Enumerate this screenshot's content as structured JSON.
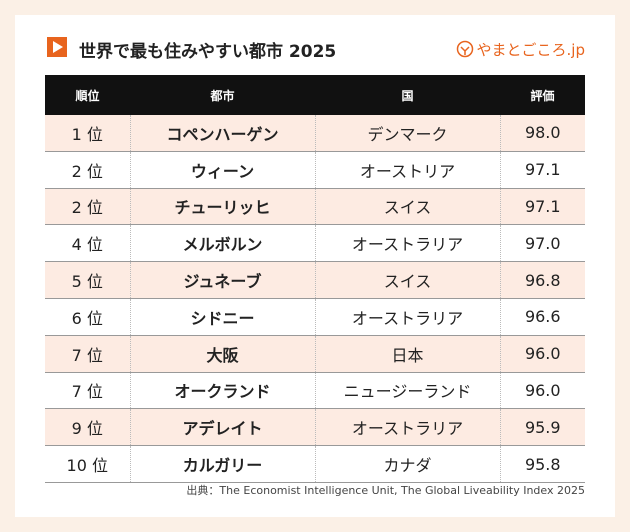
{
  "header": {
    "title": "世界で最も住みやすい都市 2025",
    "brand": "やまとごころ.jp"
  },
  "table": {
    "columns": [
      "順位",
      "都市",
      "国",
      "評価"
    ],
    "rows": [
      [
        "1 位",
        "コペンハーゲン",
        "デンマーク",
        "98.0"
      ],
      [
        "2 位",
        "ウィーン",
        "オーストリア",
        "97.1"
      ],
      [
        "2 位",
        "チューリッヒ",
        "スイス",
        "97.1"
      ],
      [
        "4 位",
        "メルボルン",
        "オーストラリア",
        "97.0"
      ],
      [
        "5 位",
        "ジュネーブ",
        "スイス",
        "96.8"
      ],
      [
        "6 位",
        "シドニー",
        "オーストラリア",
        "96.6"
      ],
      [
        "7 位",
        "大阪",
        "日本",
        "96.0"
      ],
      [
        "7 位",
        "オークランド",
        "ニュージーランド",
        "96.0"
      ],
      [
        "9 位",
        "アデレイト",
        "オーストラリア",
        "95.9"
      ],
      [
        "10 位",
        "カルガリー",
        "カナダ",
        "95.8"
      ]
    ]
  },
  "source": "出典：The Economist Intelligence Unit, The Global Liveability Index 2025"
}
